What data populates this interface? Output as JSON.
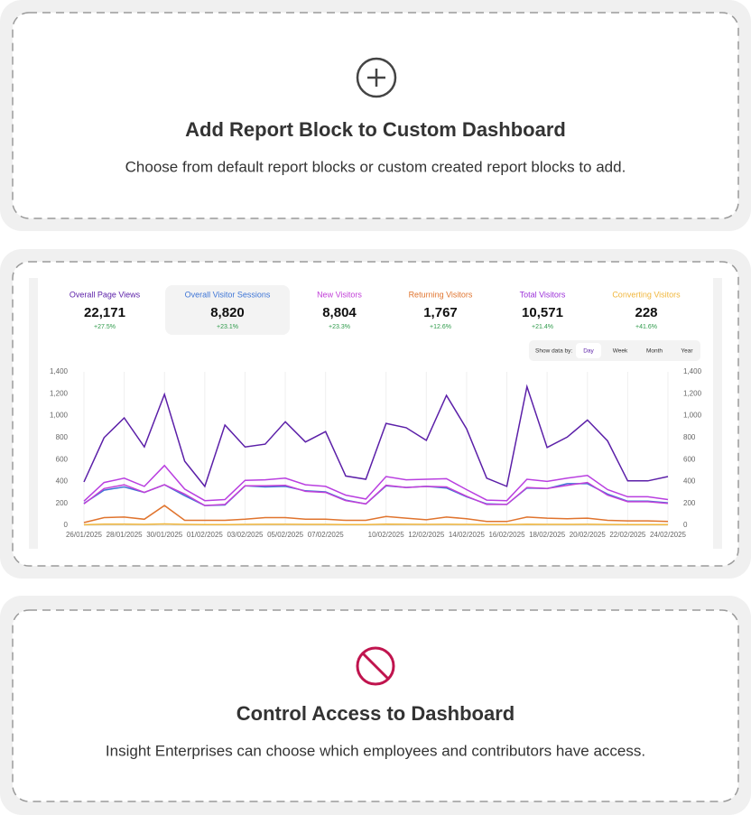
{
  "cards": [
    {
      "title": "Add Report Block to Custom Dashboard",
      "description": "Choose from default report blocks or custom created report blocks to add."
    },
    {
      "title": "Control Access to Dashboard",
      "description": "Insight Enterprises can choose which employees and contributors have access."
    }
  ],
  "kpis": [
    {
      "label": "Overall Page Views",
      "value": "22,171",
      "change": "+27.5%",
      "color": "#5b1fa8"
    },
    {
      "label": "Overall Visitor Sessions",
      "value": "8,820",
      "change": "+23.1%",
      "color": "#3f76d6",
      "selected": true
    },
    {
      "label": "New Visitors",
      "value": "8,804",
      "change": "+23.3%",
      "color": "#c13fd8"
    },
    {
      "label": "Returning Visitors",
      "value": "1,767",
      "change": "+12.6%",
      "color": "#e0742e"
    },
    {
      "label": "Total Visitors",
      "value": "10,571",
      "change": "+21.4%",
      "color": "#9b30d9"
    },
    {
      "label": "Converting Visitors",
      "value": "228",
      "change": "+41.6%",
      "color": "#f0b63c"
    }
  ],
  "show_data_by": {
    "label": "Show data by:",
    "options": [
      "Day",
      "Week",
      "Month",
      "Year"
    ],
    "selected": "Day"
  },
  "chart_data": {
    "type": "line",
    "categories": [
      "26/01/2025",
      null,
      "28/01/2025",
      null,
      "30/01/2025",
      null,
      "01/02/2025",
      null,
      "03/02/2025",
      null,
      "05/02/2025",
      null,
      "07/02/2025",
      null,
      null,
      "10/02/2025",
      null,
      "12/02/2025",
      null,
      "14/02/2025",
      null,
      "16/02/2025",
      null,
      "18/02/2025",
      null,
      "20/02/2025",
      null,
      "22/02/2025",
      null,
      "24/02/2025"
    ],
    "series": [
      {
        "name": "Overall Page Views",
        "color": "#5b1fa8",
        "values": [
          395,
          800,
          980,
          715,
          1195,
          585,
          355,
          915,
          715,
          740,
          945,
          760,
          855,
          450,
          420,
          930,
          890,
          775,
          1185,
          880,
          430,
          355,
          1265,
          710,
          805,
          960,
          770,
          405,
          405,
          445
        ]
      },
      {
        "name": "Total Visitors",
        "color": "#b93fe0",
        "values": [
          220,
          390,
          430,
          355,
          545,
          330,
          225,
          235,
          410,
          415,
          430,
          370,
          355,
          275,
          240,
          445,
          415,
          420,
          425,
          325,
          230,
          225,
          420,
          400,
          430,
          455,
          325,
          260,
          260,
          235
        ]
      },
      {
        "name": "New Visitors",
        "color": "#c13fd8",
        "values": [
          195,
          335,
          370,
          300,
          370,
          285,
          180,
          190,
          360,
          360,
          365,
          310,
          300,
          225,
          195,
          365,
          345,
          355,
          350,
          265,
          190,
          190,
          345,
          335,
          365,
          390,
          275,
          215,
          215,
          200
        ]
      },
      {
        "name": "Overall Visitor Sessions",
        "color": "#3f76d6",
        "values": [
          200,
          320,
          350,
          300,
          370,
          270,
          180,
          185,
          360,
          350,
          355,
          315,
          305,
          230,
          195,
          360,
          345,
          355,
          340,
          260,
          195,
          190,
          340,
          335,
          380,
          380,
          285,
          220,
          220,
          205
        ]
      },
      {
        "name": "Returning Visitors",
        "color": "#e0742e",
        "values": [
          25,
          70,
          75,
          55,
          180,
          45,
          45,
          45,
          55,
          70,
          70,
          55,
          55,
          45,
          45,
          80,
          65,
          50,
          75,
          60,
          35,
          35,
          75,
          65,
          60,
          65,
          45,
          40,
          40,
          35
        ]
      },
      {
        "name": "Converting Visitors",
        "color": "#f0b63c",
        "values": [
          5,
          10,
          10,
          8,
          12,
          8,
          6,
          6,
          8,
          9,
          9,
          8,
          8,
          6,
          6,
          10,
          9,
          8,
          9,
          8,
          6,
          6,
          9,
          8,
          8,
          9,
          7,
          6,
          6,
          6
        ]
      }
    ],
    "ylim": [
      0,
      1400
    ],
    "yticks": [
      0,
      200,
      400,
      600,
      800,
      {
        "value": 1000,
        "label": "1,000"
      },
      {
        "value": 1200,
        "label": "1,200"
      },
      {
        "value": 1400,
        "label": "1,400"
      }
    ],
    "grid": true
  }
}
